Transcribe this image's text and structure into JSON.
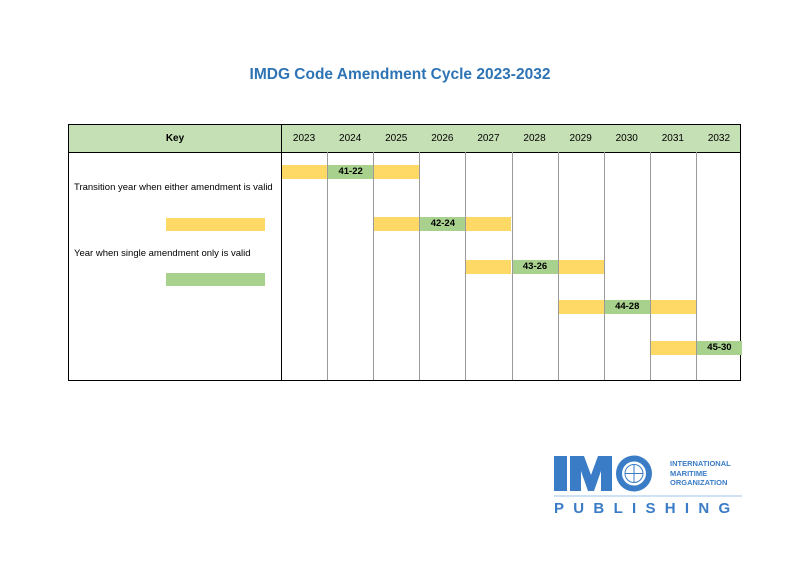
{
  "title": "IMDG Code Amendment Cycle 2023-2032",
  "table": {
    "key_header": "Key",
    "years": [
      "2023",
      "2024",
      "2025",
      "2026",
      "2027",
      "2028",
      "2029",
      "2030",
      "2031",
      "2032"
    ]
  },
  "key": {
    "transition_label": "Transition year when either amendment is valid",
    "single_label": "Year when single amendment only is valid",
    "transition_color": "#ffd966",
    "single_color": "#a9d18e"
  },
  "amendments": [
    {
      "label": "41-22",
      "transition_before": 2023,
      "valid": 2024,
      "transition_after": 2025
    },
    {
      "label": "42-24",
      "transition_before": 2025,
      "valid": 2026,
      "transition_after": 2027
    },
    {
      "label": "43-26",
      "transition_before": 2027,
      "valid": 2028,
      "transition_after": 2029
    },
    {
      "label": "44-28",
      "transition_before": 2029,
      "valid": 2030,
      "transition_after": 2031
    },
    {
      "label": "45-30",
      "transition_before": 2031,
      "valid": 2032,
      "transition_after": null
    }
  ],
  "logo": {
    "mark": "IMO",
    "org_lines": [
      "INTERNATIONAL",
      "MARITIME",
      "ORGANIZATION"
    ],
    "publishing": "PUBLISHING",
    "color": "#3a7cc6"
  }
}
